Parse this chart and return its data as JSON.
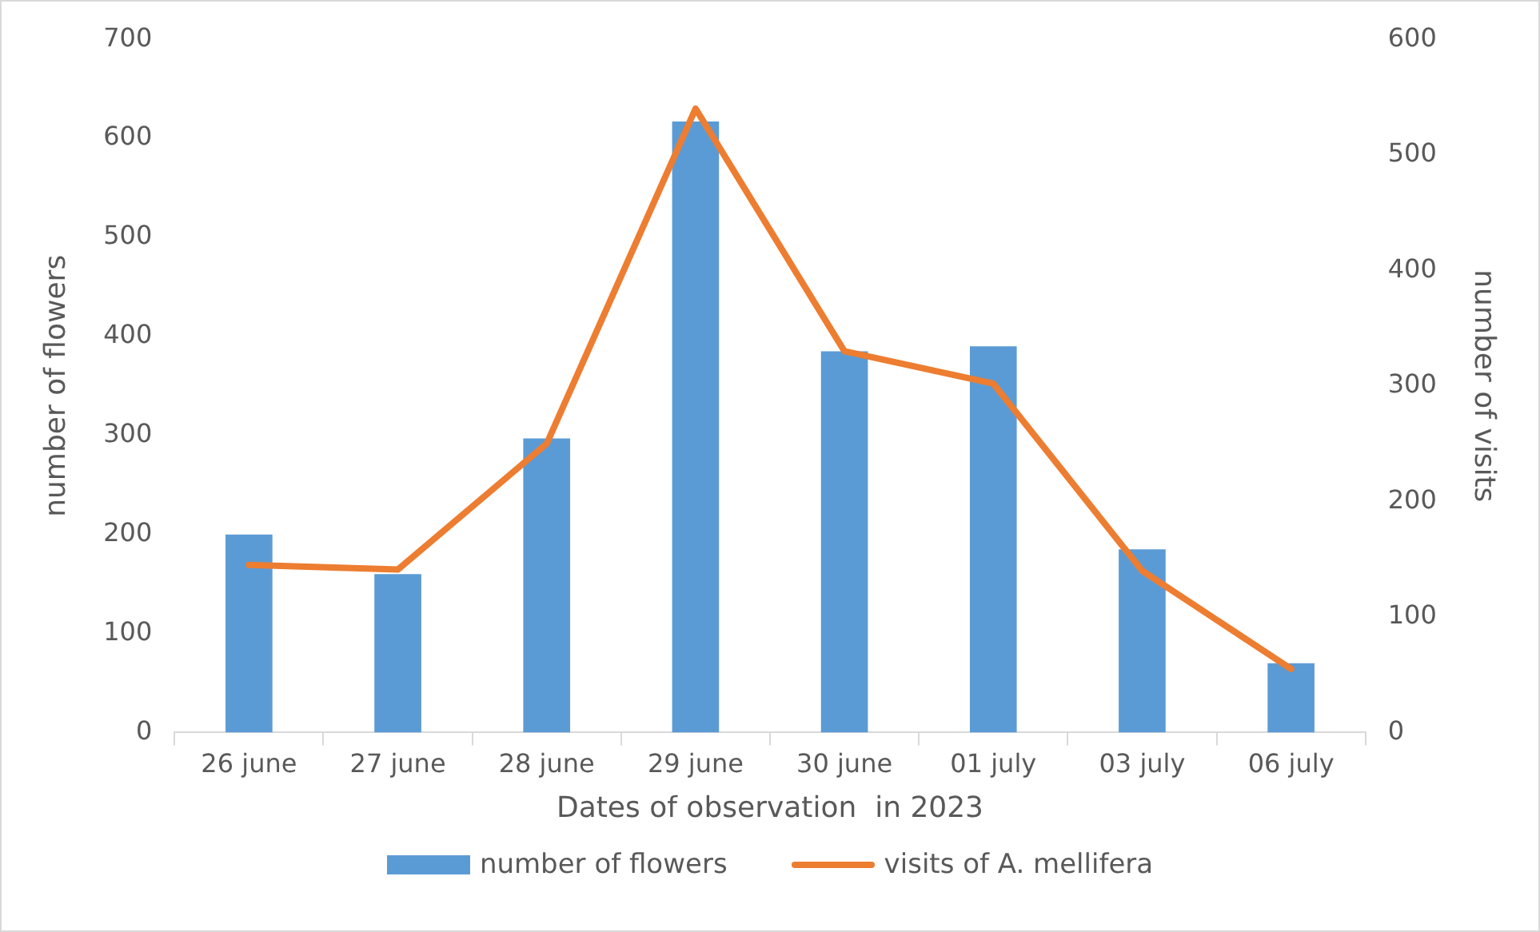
{
  "chart_data": {
    "type": "bar",
    "xlabel": "Dates of observation  in 2023",
    "ylabel": "number of flowers",
    "y2label": "number of visits",
    "categories": [
      "26 june",
      "27 june",
      "28 june",
      "29 june",
      "30 june",
      "01 july",
      "03 july",
      "06 july"
    ],
    "series": [
      {
        "name": "number of flowers",
        "color": "#5b9bd5",
        "values": [
          200,
          160,
          297,
          617,
          385,
          390,
          185,
          70
        ]
      },
      {
        "name": "visits of A. mellifera",
        "type": "line",
        "axis": "y2",
        "color": "#ed7d31",
        "values": [
          145,
          141,
          250,
          540,
          330,
          302,
          140,
          55
        ]
      }
    ],
    "ylim": [
      0,
      700
    ],
    "yticks": [
      0,
      100,
      200,
      300,
      400,
      500,
      600,
      700
    ],
    "y2lim": [
      0,
      600
    ],
    "y2ticks": [
      0,
      100,
      200,
      300,
      400,
      500,
      600
    ],
    "grid": false,
    "legend": "bottom",
    "marker": "none",
    "line_style": "solid"
  }
}
